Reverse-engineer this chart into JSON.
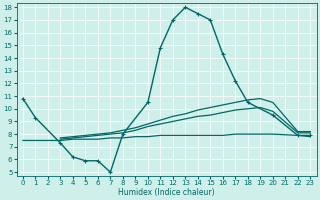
{
  "xlabel": "Humidex (Indice chaleur)",
  "xlim": [
    -0.5,
    23.5
  ],
  "ylim": [
    5,
    18
  ],
  "yticks": [
    5,
    6,
    7,
    8,
    9,
    10,
    11,
    12,
    13,
    14,
    15,
    16,
    17,
    18
  ],
  "xticks": [
    0,
    1,
    2,
    3,
    4,
    5,
    6,
    7,
    8,
    9,
    10,
    11,
    12,
    13,
    14,
    15,
    16,
    17,
    18,
    19,
    20,
    21,
    22,
    23
  ],
  "bg_color": "#cff0ea",
  "line_color": "#006666",
  "grid_color": "#ffffff",
  "lines": [
    {
      "x": [
        0,
        1,
        3,
        4,
        5,
        6,
        7,
        8,
        10,
        11,
        12,
        13,
        14,
        15,
        16,
        17,
        18,
        20,
        22,
        23
      ],
      "y": [
        10.8,
        9.3,
        7.3,
        6.2,
        5.9,
        5.9,
        5.0,
        8.0,
        10.5,
        14.8,
        17.0,
        18.0,
        17.5,
        17.0,
        14.3,
        12.2,
        10.5,
        9.5,
        7.9,
        7.9
      ],
      "marker": true,
      "lw": 1.0
    },
    {
      "x": [
        0,
        1,
        2,
        3,
        4,
        5,
        6,
        7,
        8,
        9,
        10,
        11,
        12,
        13,
        14,
        15,
        16,
        17,
        18,
        19,
        20,
        22,
        23
      ],
      "y": [
        7.5,
        7.5,
        7.5,
        7.5,
        7.6,
        7.6,
        7.6,
        7.7,
        7.7,
        7.8,
        7.8,
        7.9,
        7.9,
        7.9,
        7.9,
        7.9,
        7.9,
        8.0,
        8.0,
        8.0,
        8.0,
        7.9,
        7.8
      ],
      "marker": false,
      "lw": 0.9
    },
    {
      "x": [
        3,
        4,
        5,
        6,
        7,
        8,
        9,
        10,
        11,
        12,
        13,
        14,
        15,
        16,
        17,
        18,
        19,
        20,
        22,
        23
      ],
      "y": [
        7.6,
        7.7,
        7.8,
        7.9,
        8.0,
        8.1,
        8.3,
        8.6,
        8.8,
        9.0,
        9.2,
        9.4,
        9.5,
        9.7,
        9.9,
        10.0,
        10.1,
        9.8,
        8.1,
        8.1
      ],
      "marker": false,
      "lw": 0.9
    },
    {
      "x": [
        3,
        4,
        5,
        6,
        7,
        8,
        9,
        10,
        11,
        12,
        13,
        14,
        15,
        16,
        17,
        18,
        19,
        20,
        22,
        23
      ],
      "y": [
        7.7,
        7.8,
        7.9,
        8.0,
        8.1,
        8.3,
        8.5,
        8.8,
        9.1,
        9.4,
        9.6,
        9.9,
        10.1,
        10.3,
        10.5,
        10.7,
        10.8,
        10.5,
        8.2,
        8.2
      ],
      "marker": false,
      "lw": 0.9
    }
  ]
}
